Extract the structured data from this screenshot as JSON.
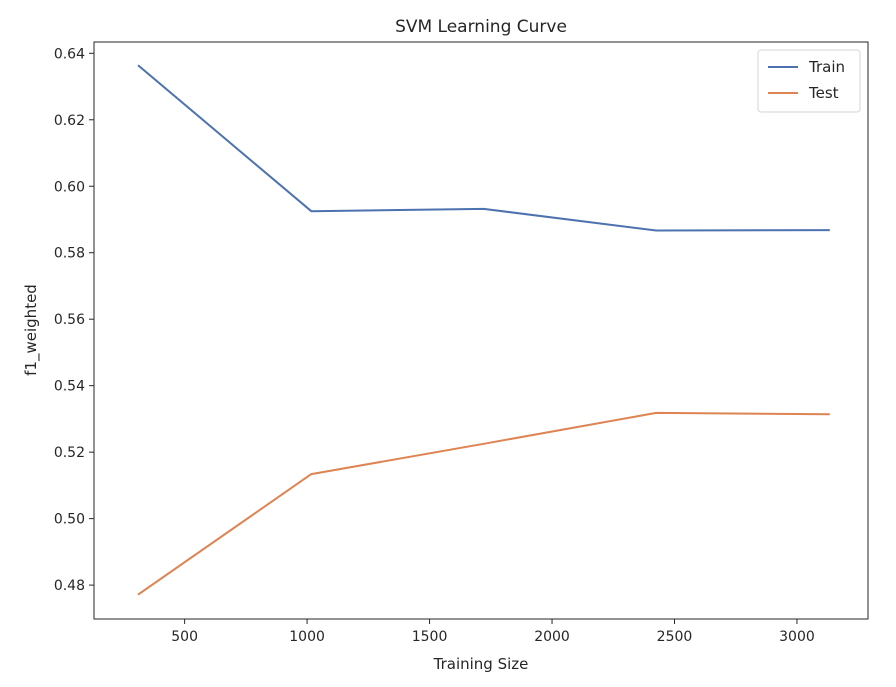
{
  "chart_data": {
    "type": "line",
    "title": "SVM Learning Curve",
    "xlabel": "Training Size",
    "ylabel": "f1_weighted",
    "x": [
      313,
      1017,
      1721,
      2425,
      3130
    ],
    "xlim": [
      130,
      3290
    ],
    "ylim": [
      0.4698,
      0.6434
    ],
    "xticks": [
      500,
      1000,
      1500,
      2000,
      2500,
      3000
    ],
    "yticks": [
      0.48,
      0.5,
      0.52,
      0.54,
      0.56,
      0.58,
      0.6,
      0.62,
      0.64
    ],
    "series": [
      {
        "name": "Train",
        "color": "#4c72b0",
        "values": [
          0.6362,
          0.5925,
          0.5932,
          0.5867,
          0.5868
        ]
      },
      {
        "name": "Test",
        "color": "#dd8452",
        "values": [
          0.4773,
          0.5134,
          0.5225,
          0.5318,
          0.5314
        ]
      }
    ],
    "grid": false,
    "legend": "top-right"
  }
}
